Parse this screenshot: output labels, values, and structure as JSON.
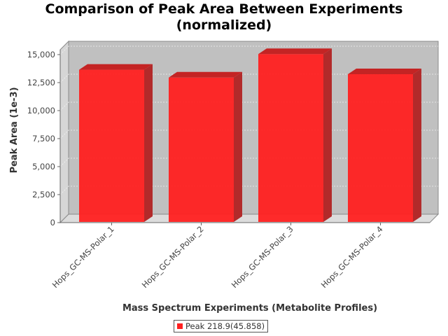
{
  "chart_data": {
    "type": "bar",
    "title_line1": "Comparison of Peak Area Between Experiments",
    "title_line2": "(normalized)",
    "xlabel": "Mass Spectrum Experiments (Metabolite Profiles)",
    "ylabel": "Peak Area (1e-3)",
    "categories": [
      "Hops_GC-MS-Polar_1",
      "Hops_GC-MS-Polar_2",
      "Hops_GC-MS-Polar_3",
      "Hops_GC-MS-Polar_4"
    ],
    "series": [
      {
        "name": "Peak 218.9(45.858)",
        "values": [
          13650,
          12950,
          15050,
          13250
        ],
        "color": "#ff2020"
      }
    ],
    "y_ticks": [
      0,
      2500,
      5000,
      7500,
      10000,
      12500,
      15000
    ],
    "y_tick_labels": [
      "0",
      "2,500",
      "5,000",
      "7,500",
      "10,000",
      "12,500",
      "15,000"
    ],
    "ylim": [
      0,
      15000
    ],
    "grid": true,
    "legend_position": "bottom",
    "style": "3d-bar",
    "plot_background": "#c0c0c0"
  }
}
